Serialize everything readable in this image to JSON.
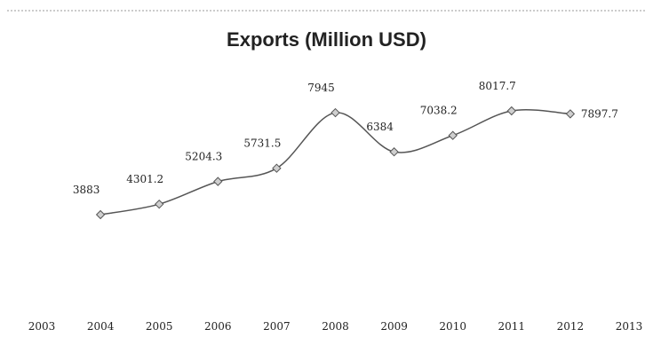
{
  "chart_data": {
    "type": "line",
    "title": "Exports (Million USD)",
    "xlabel": "",
    "ylabel": "",
    "categories": [
      "2003",
      "2004",
      "2005",
      "2006",
      "2007",
      "2008",
      "2009",
      "2010",
      "2011",
      "2012",
      "2013"
    ],
    "series": [
      {
        "x": [
          "2004",
          "2005",
          "2006",
          "2007",
          "2008",
          "2009",
          "2010",
          "2011",
          "2012"
        ],
        "values": [
          3883,
          4301.2,
          5204.3,
          5731.5,
          7945,
          6384,
          7038.2,
          8017.7,
          7897.7
        ],
        "labels": [
          "3883",
          "4301.2",
          "5204.3",
          "5731.5",
          "7945",
          "6384",
          "7038.2",
          "8017.7",
          "7897.7"
        ],
        "color": "#555555",
        "marker": "diamond"
      }
    ],
    "grid": false,
    "legend": "none"
  }
}
